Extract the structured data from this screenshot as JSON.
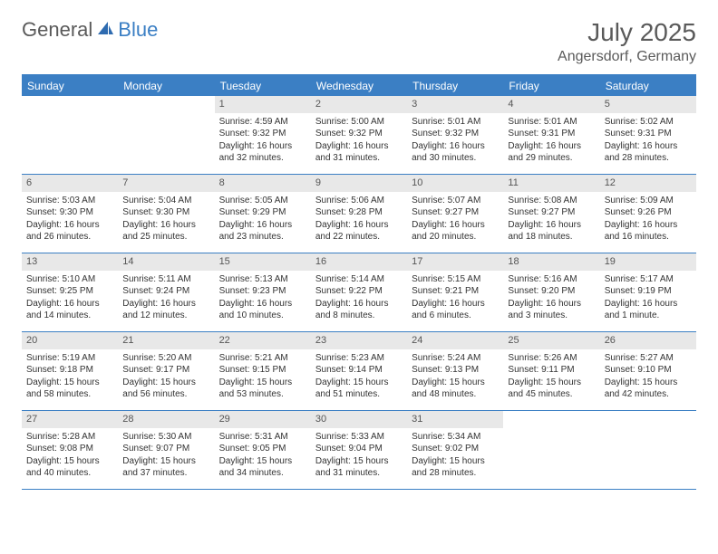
{
  "logo": {
    "part1": "General",
    "part2": "Blue"
  },
  "title": "July 2025",
  "location": "Angersdorf, Germany",
  "colors": {
    "header_bg": "#3b7fc4",
    "daynum_bg": "#e8e8e8",
    "text": "#5a5a5a",
    "body_text": "#333333"
  },
  "weekdays": [
    "Sunday",
    "Monday",
    "Tuesday",
    "Wednesday",
    "Thursday",
    "Friday",
    "Saturday"
  ],
  "weeks": [
    [
      null,
      null,
      {
        "n": "1",
        "sr": "Sunrise: 4:59 AM",
        "ss": "Sunset: 9:32 PM",
        "d1": "Daylight: 16 hours",
        "d2": "and 32 minutes."
      },
      {
        "n": "2",
        "sr": "Sunrise: 5:00 AM",
        "ss": "Sunset: 9:32 PM",
        "d1": "Daylight: 16 hours",
        "d2": "and 31 minutes."
      },
      {
        "n": "3",
        "sr": "Sunrise: 5:01 AM",
        "ss": "Sunset: 9:32 PM",
        "d1": "Daylight: 16 hours",
        "d2": "and 30 minutes."
      },
      {
        "n": "4",
        "sr": "Sunrise: 5:01 AM",
        "ss": "Sunset: 9:31 PM",
        "d1": "Daylight: 16 hours",
        "d2": "and 29 minutes."
      },
      {
        "n": "5",
        "sr": "Sunrise: 5:02 AM",
        "ss": "Sunset: 9:31 PM",
        "d1": "Daylight: 16 hours",
        "d2": "and 28 minutes."
      }
    ],
    [
      {
        "n": "6",
        "sr": "Sunrise: 5:03 AM",
        "ss": "Sunset: 9:30 PM",
        "d1": "Daylight: 16 hours",
        "d2": "and 26 minutes."
      },
      {
        "n": "7",
        "sr": "Sunrise: 5:04 AM",
        "ss": "Sunset: 9:30 PM",
        "d1": "Daylight: 16 hours",
        "d2": "and 25 minutes."
      },
      {
        "n": "8",
        "sr": "Sunrise: 5:05 AM",
        "ss": "Sunset: 9:29 PM",
        "d1": "Daylight: 16 hours",
        "d2": "and 23 minutes."
      },
      {
        "n": "9",
        "sr": "Sunrise: 5:06 AM",
        "ss": "Sunset: 9:28 PM",
        "d1": "Daylight: 16 hours",
        "d2": "and 22 minutes."
      },
      {
        "n": "10",
        "sr": "Sunrise: 5:07 AM",
        "ss": "Sunset: 9:27 PM",
        "d1": "Daylight: 16 hours",
        "d2": "and 20 minutes."
      },
      {
        "n": "11",
        "sr": "Sunrise: 5:08 AM",
        "ss": "Sunset: 9:27 PM",
        "d1": "Daylight: 16 hours",
        "d2": "and 18 minutes."
      },
      {
        "n": "12",
        "sr": "Sunrise: 5:09 AM",
        "ss": "Sunset: 9:26 PM",
        "d1": "Daylight: 16 hours",
        "d2": "and 16 minutes."
      }
    ],
    [
      {
        "n": "13",
        "sr": "Sunrise: 5:10 AM",
        "ss": "Sunset: 9:25 PM",
        "d1": "Daylight: 16 hours",
        "d2": "and 14 minutes."
      },
      {
        "n": "14",
        "sr": "Sunrise: 5:11 AM",
        "ss": "Sunset: 9:24 PM",
        "d1": "Daylight: 16 hours",
        "d2": "and 12 minutes."
      },
      {
        "n": "15",
        "sr": "Sunrise: 5:13 AM",
        "ss": "Sunset: 9:23 PM",
        "d1": "Daylight: 16 hours",
        "d2": "and 10 minutes."
      },
      {
        "n": "16",
        "sr": "Sunrise: 5:14 AM",
        "ss": "Sunset: 9:22 PM",
        "d1": "Daylight: 16 hours",
        "d2": "and 8 minutes."
      },
      {
        "n": "17",
        "sr": "Sunrise: 5:15 AM",
        "ss": "Sunset: 9:21 PM",
        "d1": "Daylight: 16 hours",
        "d2": "and 6 minutes."
      },
      {
        "n": "18",
        "sr": "Sunrise: 5:16 AM",
        "ss": "Sunset: 9:20 PM",
        "d1": "Daylight: 16 hours",
        "d2": "and 3 minutes."
      },
      {
        "n": "19",
        "sr": "Sunrise: 5:17 AM",
        "ss": "Sunset: 9:19 PM",
        "d1": "Daylight: 16 hours",
        "d2": "and 1 minute."
      }
    ],
    [
      {
        "n": "20",
        "sr": "Sunrise: 5:19 AM",
        "ss": "Sunset: 9:18 PM",
        "d1": "Daylight: 15 hours",
        "d2": "and 58 minutes."
      },
      {
        "n": "21",
        "sr": "Sunrise: 5:20 AM",
        "ss": "Sunset: 9:17 PM",
        "d1": "Daylight: 15 hours",
        "d2": "and 56 minutes."
      },
      {
        "n": "22",
        "sr": "Sunrise: 5:21 AM",
        "ss": "Sunset: 9:15 PM",
        "d1": "Daylight: 15 hours",
        "d2": "and 53 minutes."
      },
      {
        "n": "23",
        "sr": "Sunrise: 5:23 AM",
        "ss": "Sunset: 9:14 PM",
        "d1": "Daylight: 15 hours",
        "d2": "and 51 minutes."
      },
      {
        "n": "24",
        "sr": "Sunrise: 5:24 AM",
        "ss": "Sunset: 9:13 PM",
        "d1": "Daylight: 15 hours",
        "d2": "and 48 minutes."
      },
      {
        "n": "25",
        "sr": "Sunrise: 5:26 AM",
        "ss": "Sunset: 9:11 PM",
        "d1": "Daylight: 15 hours",
        "d2": "and 45 minutes."
      },
      {
        "n": "26",
        "sr": "Sunrise: 5:27 AM",
        "ss": "Sunset: 9:10 PM",
        "d1": "Daylight: 15 hours",
        "d2": "and 42 minutes."
      }
    ],
    [
      {
        "n": "27",
        "sr": "Sunrise: 5:28 AM",
        "ss": "Sunset: 9:08 PM",
        "d1": "Daylight: 15 hours",
        "d2": "and 40 minutes."
      },
      {
        "n": "28",
        "sr": "Sunrise: 5:30 AM",
        "ss": "Sunset: 9:07 PM",
        "d1": "Daylight: 15 hours",
        "d2": "and 37 minutes."
      },
      {
        "n": "29",
        "sr": "Sunrise: 5:31 AM",
        "ss": "Sunset: 9:05 PM",
        "d1": "Daylight: 15 hours",
        "d2": "and 34 minutes."
      },
      {
        "n": "30",
        "sr": "Sunrise: 5:33 AM",
        "ss": "Sunset: 9:04 PM",
        "d1": "Daylight: 15 hours",
        "d2": "and 31 minutes."
      },
      {
        "n": "31",
        "sr": "Sunrise: 5:34 AM",
        "ss": "Sunset: 9:02 PM",
        "d1": "Daylight: 15 hours",
        "d2": "and 28 minutes."
      },
      null,
      null
    ]
  ]
}
